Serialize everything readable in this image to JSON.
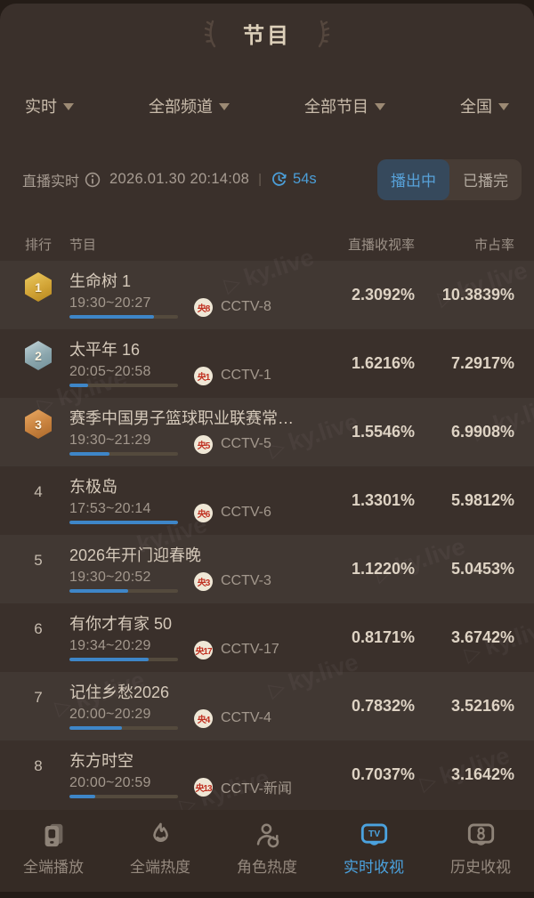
{
  "header": {
    "title": "节目"
  },
  "filters": [
    {
      "label": "实时"
    },
    {
      "label": "全部频道"
    },
    {
      "label": "全部节目"
    },
    {
      "label": "全国"
    }
  ],
  "live_bar": {
    "label": "直播实时",
    "datetime": "2026.01.30 20:14:08",
    "divider": "|",
    "countdown": "54s",
    "status_tabs": [
      {
        "label": "播出中",
        "active": true
      },
      {
        "label": "已播完",
        "active": false
      }
    ]
  },
  "table": {
    "headers": {
      "rank": "排行",
      "program": "节目",
      "rating": "直播收视率",
      "share": "市占率"
    }
  },
  "rows": [
    {
      "rank": "1",
      "medal": "gold",
      "title": "生命树 1",
      "time": "19:30~20:27",
      "channel_badge": "央8",
      "channel": "CCTV-8",
      "rating": "2.3092%",
      "share": "10.3839%",
      "progress": 78
    },
    {
      "rank": "2",
      "medal": "silver",
      "title": "太平年 16",
      "time": "20:05~20:58",
      "channel_badge": "央1",
      "channel": "CCTV-1",
      "rating": "1.6216%",
      "share": "7.2917%",
      "progress": 17
    },
    {
      "rank": "3",
      "medal": "bronze",
      "title": "赛季中国男子篮球职业联赛常…",
      "time": "19:30~21:29",
      "channel_badge": "央5",
      "channel": "CCTV-5",
      "rating": "1.5546%",
      "share": "6.9908%",
      "progress": 37
    },
    {
      "rank": "4",
      "medal": null,
      "title": "东极岛",
      "time": "17:53~20:14",
      "channel_badge": "央6",
      "channel": "CCTV-6",
      "rating": "1.3301%",
      "share": "5.9812%",
      "progress": 100
    },
    {
      "rank": "5",
      "medal": null,
      "title": "2026年开门迎春晚",
      "time": "19:30~20:52",
      "channel_badge": "央3",
      "channel": "CCTV-3",
      "rating": "1.1220%",
      "share": "5.0453%",
      "progress": 54
    },
    {
      "rank": "6",
      "medal": null,
      "title": "有你才有家 50",
      "time": "19:34~20:29",
      "channel_badge": "央17",
      "channel": "CCTV-17",
      "rating": "0.8171%",
      "share": "3.6742%",
      "progress": 73
    },
    {
      "rank": "7",
      "medal": null,
      "title": "记住乡愁2026",
      "time": "20:00~20:29",
      "channel_badge": "央4",
      "channel": "CCTV-4",
      "rating": "0.7832%",
      "share": "3.5216%",
      "progress": 48
    },
    {
      "rank": "8",
      "medal": null,
      "title": "东方时空",
      "time": "20:00~20:59",
      "channel_badge": "央13",
      "channel": "CCTV-新闻",
      "rating": "0.7037%",
      "share": "3.1642%",
      "progress": 24
    }
  ],
  "watermark": {
    "text": "ky.live"
  },
  "tabbar": [
    {
      "label": "全端播放",
      "icon": "playback-icon",
      "active": false
    },
    {
      "label": "全端热度",
      "icon": "heat-icon",
      "active": false
    },
    {
      "label": "角色热度",
      "icon": "character-heat-icon",
      "active": false
    },
    {
      "label": "实时收视",
      "icon": "live-ratings-icon",
      "active": true
    },
    {
      "label": "历史收视",
      "icon": "history-ratings-icon",
      "active": false
    }
  ],
  "colors": {
    "accent_blue": "#4b9ed8",
    "medal_gold": "#d2a436",
    "medal_silver": "#8ba6ad",
    "medal_bronze": "#c8823e",
    "channel_red": "#c03122",
    "background": "#3a302b"
  }
}
